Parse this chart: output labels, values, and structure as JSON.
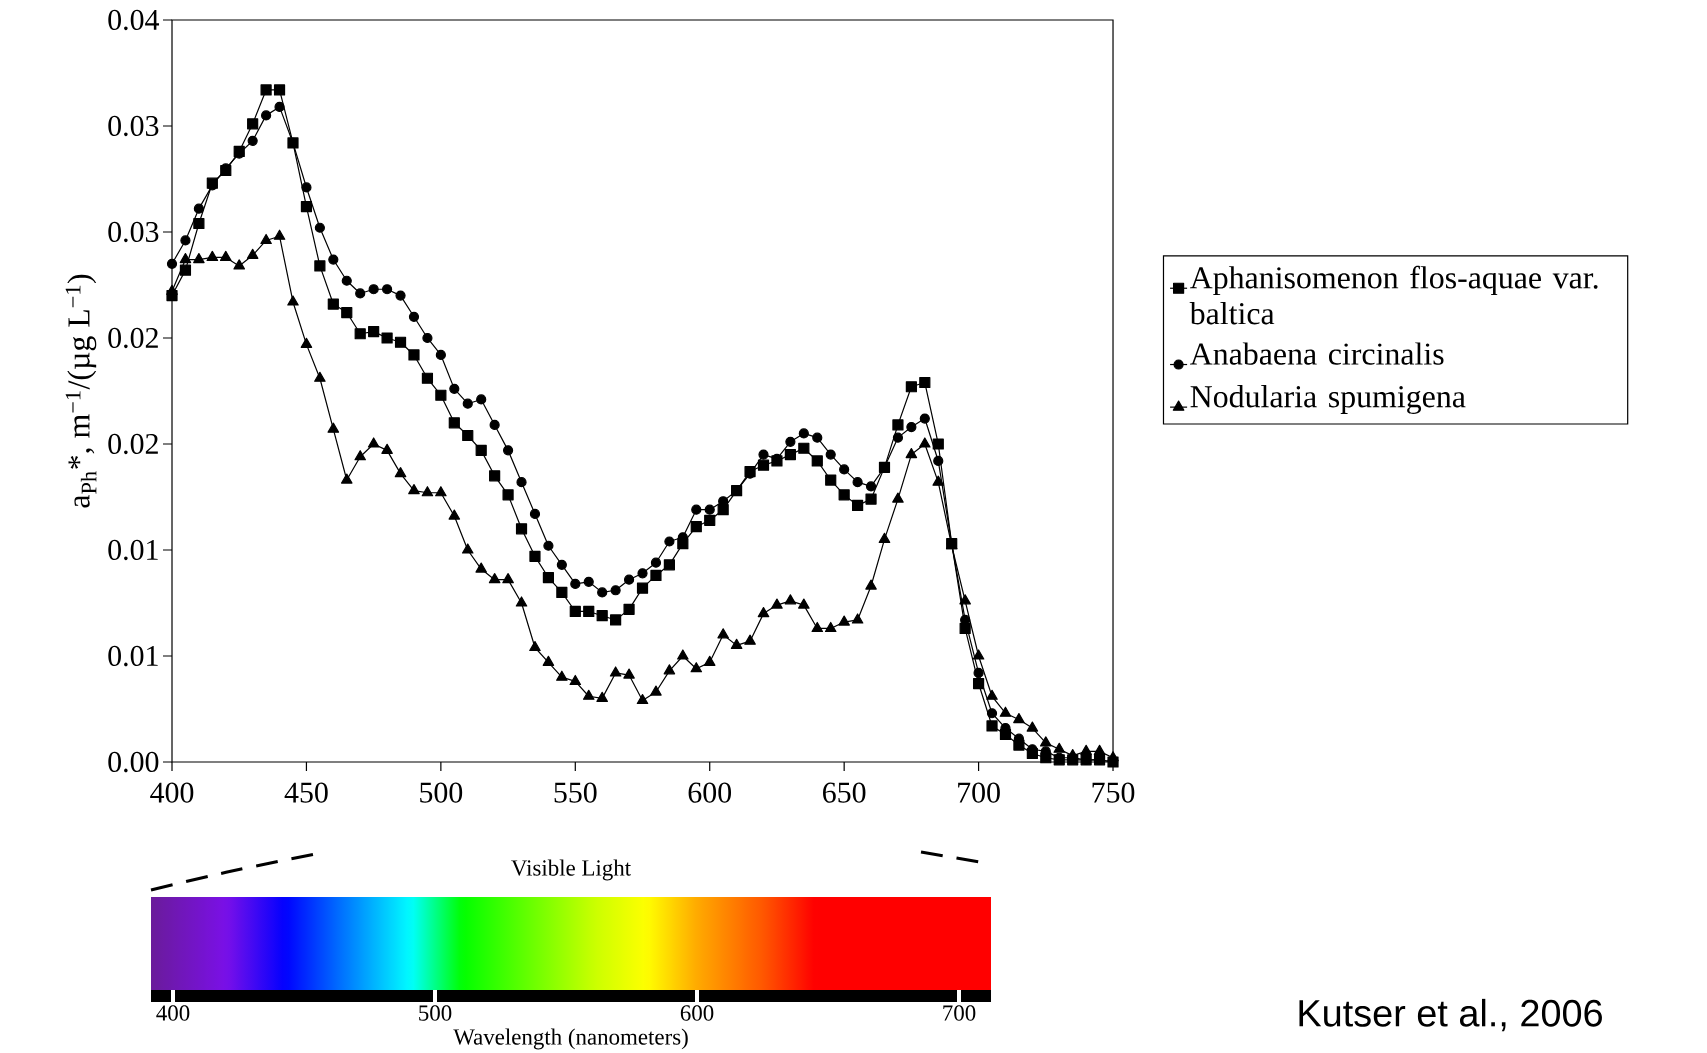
{
  "chart_data": {
    "type": "line",
    "ylabel": "a$_{Ph}$*, m$^{−1}$/(µg L$^{−1}$)",
    "x": [
      400,
      405,
      410,
      415,
      420,
      425,
      430,
      435,
      440,
      445,
      450,
      455,
      460,
      465,
      470,
      475,
      480,
      485,
      490,
      495,
      500,
      505,
      510,
      515,
      520,
      525,
      530,
      535,
      540,
      545,
      550,
      555,
      560,
      565,
      570,
      575,
      580,
      585,
      590,
      595,
      600,
      605,
      610,
      615,
      620,
      625,
      630,
      635,
      640,
      645,
      650,
      655,
      660,
      665,
      670,
      675,
      680,
      685,
      690,
      695,
      700,
      705,
      710,
      715,
      720,
      725,
      730,
      735,
      740,
      745,
      750
    ],
    "series": [
      {
        "name": "Aphanisomenon flos-aquae var. baltica",
        "color": "#000000",
        "marker": "square",
        "values": [
          0.022,
          0.0232,
          0.0254,
          0.0273,
          0.0279,
          0.0288,
          0.0301,
          0.0317,
          0.0317,
          0.0292,
          0.0262,
          0.0234,
          0.0216,
          0.0212,
          0.0202,
          0.0203,
          0.02,
          0.0198,
          0.0192,
          0.0181,
          0.0173,
          0.016,
          0.0154,
          0.0147,
          0.0135,
          0.0126,
          0.011,
          0.0097,
          0.0087,
          0.008,
          0.0071,
          0.0071,
          0.0069,
          0.0067,
          0.0072,
          0.0082,
          0.0088,
          0.0093,
          0.0103,
          0.0111,
          0.0114,
          0.0119,
          0.0128,
          0.0137,
          0.014,
          0.0142,
          0.0145,
          0.0148,
          0.0142,
          0.0133,
          0.0126,
          0.0121,
          0.0124,
          0.0139,
          0.0159,
          0.0177,
          0.0179,
          0.015,
          0.0103,
          0.0063,
          0.0037,
          0.0017,
          0.0013,
          0.0008,
          0.0004,
          0.0002,
          0.0001,
          0.0001,
          0.0001,
          0.0001,
          0.0
        ]
      },
      {
        "name": "Anabaena circinalis",
        "color": "#000000",
        "marker": "circle",
        "values": [
          0.0235,
          0.0246,
          0.0261,
          0.0272,
          0.028,
          0.0287,
          0.0293,
          0.0305,
          0.0309,
          0.0292,
          0.0271,
          0.0252,
          0.0237,
          0.0227,
          0.0221,
          0.0223,
          0.0223,
          0.022,
          0.021,
          0.02,
          0.0192,
          0.0176,
          0.0169,
          0.0171,
          0.0159,
          0.0147,
          0.0132,
          0.0117,
          0.0102,
          0.0093,
          0.0084,
          0.0085,
          0.008,
          0.0081,
          0.0086,
          0.0089,
          0.0094,
          0.0104,
          0.0106,
          0.0119,
          0.0119,
          0.0123,
          0.0128,
          0.0136,
          0.0145,
          0.0143,
          0.0151,
          0.0155,
          0.0153,
          0.0145,
          0.0138,
          0.0132,
          0.013,
          0.0139,
          0.0153,
          0.0158,
          0.0162,
          0.0142,
          0.0103,
          0.0067,
          0.0042,
          0.0023,
          0.0016,
          0.0011,
          0.0006,
          0.0005,
          0.0002,
          0.0002,
          0.0001,
          0.0001,
          0.0
        ]
      },
      {
        "name": "Nodularia spumigena",
        "color": "#000000",
        "marker": "triangle",
        "values": [
          0.0222,
          0.0237,
          0.0237,
          0.0238,
          0.0238,
          0.0234,
          0.0239,
          0.0246,
          0.0248,
          0.0217,
          0.0197,
          0.0181,
          0.0157,
          0.0133,
          0.0144,
          0.015,
          0.0147,
          0.0136,
          0.0128,
          0.0127,
          0.0127,
          0.0116,
          0.01,
          0.0091,
          0.0086,
          0.0086,
          0.0075,
          0.0054,
          0.0047,
          0.004,
          0.0038,
          0.0031,
          0.003,
          0.0042,
          0.0041,
          0.0029,
          0.0033,
          0.0043,
          0.005,
          0.0044,
          0.0047,
          0.006,
          0.0055,
          0.0057,
          0.007,
          0.0074,
          0.0076,
          0.0074,
          0.0063,
          0.0063,
          0.0066,
          0.0067,
          0.0083,
          0.0105,
          0.0124,
          0.0145,
          0.015,
          0.0132,
          0.0102,
          0.0076,
          0.005,
          0.0031,
          0.0023,
          0.002,
          0.0016,
          0.0009,
          0.0006,
          0.0003,
          0.0005,
          0.0005,
          0.0002
        ]
      }
    ],
    "xlim": [
      400,
      750
    ],
    "xticks": [
      400,
      450,
      500,
      550,
      600,
      650,
      700,
      750
    ],
    "ylim": [
      0,
      0.035
    ],
    "yticks": [
      {
        "value": 0,
        "label": "0.00"
      },
      {
        "value": 0.005,
        "label": "0.01"
      },
      0.01,
      {
        "value": 0.015,
        "label": "0.02"
      },
      0.02,
      {
        "value": 0.025,
        "label": "0.03"
      },
      0.03,
      {
        "value": 0.035,
        "label": "0.04"
      }
    ],
    "legend": "right",
    "annotations": [
      "Visible Light",
      "400",
      "500",
      "600",
      "700",
      "Wavelength (nanometers)",
      "Kutser et al., 2006"
    ]
  }
}
